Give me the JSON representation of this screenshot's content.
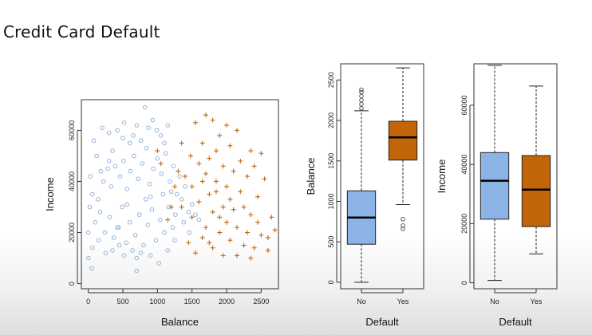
{
  "title": "Credit Card Default",
  "colors": {
    "no": "#86acd8",
    "yes": "#c06a0e",
    "no_box": "#8bb3e6",
    "yes_box": "#c26408"
  },
  "chart_data": [
    {
      "type": "scatter",
      "xlabel": "Balance",
      "ylabel": "Income",
      "xlim": [
        -100,
        2750
      ],
      "ylim": [
        -2000,
        72000
      ],
      "xticks": [
        0,
        500,
        1000,
        1500,
        2000,
        2500
      ],
      "yticks": [
        0,
        20000,
        40000,
        60000
      ],
      "grid": false,
      "legend": "none",
      "series": [
        {
          "marker": "circle",
          "color": "#86acd8",
          "points": [
            [
              30,
              42000
            ],
            [
              80,
              56000
            ],
            [
              120,
              50000
            ],
            [
              200,
              61000
            ],
            [
              300,
              59000
            ],
            [
              350,
              52000
            ],
            [
              420,
              60000
            ],
            [
              500,
              57000
            ],
            [
              520,
              63000
            ],
            [
              600,
              55000
            ],
            [
              650,
              58000
            ],
            [
              700,
              62000
            ],
            [
              760,
              56000
            ],
            [
              820,
              69000
            ],
            [
              870,
              61000
            ],
            [
              930,
              64000
            ],
            [
              990,
              60000
            ],
            [
              1050,
              58000
            ],
            [
              1100,
              55000
            ],
            [
              1150,
              62000
            ],
            [
              60,
              35000
            ],
            [
              140,
              33000
            ],
            [
              220,
              40000
            ],
            [
              280,
              45000
            ],
            [
              330,
              38000
            ],
            [
              390,
              46000
            ],
            [
              460,
              42000
            ],
            [
              510,
              48000
            ],
            [
              560,
              37000
            ],
            [
              610,
              44000
            ],
            [
              660,
              50000
            ],
            [
              720,
              41000
            ],
            [
              780,
              47000
            ],
            [
              840,
              53000
            ],
            [
              890,
              39000
            ],
            [
              940,
              45000
            ],
            [
              1000,
              49000
            ],
            [
              1060,
              43000
            ],
            [
              1120,
              51000
            ],
            [
              1180,
              40000
            ],
            [
              1230,
              46000
            ],
            [
              1280,
              35000
            ],
            [
              1320,
              42000
            ],
            [
              20,
              30000
            ],
            [
              100,
              24000
            ],
            [
              170,
              28000
            ],
            [
              240,
              20000
            ],
            [
              310,
              26000
            ],
            [
              370,
              18000
            ],
            [
              440,
              22000
            ],
            [
              490,
              30000
            ],
            [
              550,
              16000
            ],
            [
              600,
              24000
            ],
            [
              680,
              19000
            ],
            [
              740,
              27000
            ],
            [
              800,
              15000
            ],
            [
              860,
              23000
            ],
            [
              920,
              29000
            ],
            [
              980,
              17000
            ],
            [
              1040,
              25000
            ],
            [
              1100,
              20000
            ],
            [
              1160,
              30000
            ],
            [
              1220,
              22000
            ],
            [
              1260,
              27000
            ],
            [
              1350,
              33000
            ],
            [
              1400,
              38000
            ],
            [
              1450,
              28000
            ],
            [
              0,
              20000
            ],
            [
              60,
              14000
            ],
            [
              150,
              17000
            ],
            [
              250,
              12000
            ],
            [
              350,
              13000
            ],
            [
              450,
              15000
            ],
            [
              520,
              11000
            ],
            [
              640,
              13000
            ],
            [
              700,
              10000
            ],
            [
              760,
              12000
            ],
            [
              900,
              11000
            ],
            [
              1020,
              8000
            ],
            [
              1150,
              13000
            ],
            [
              1250,
              17000
            ],
            [
              0,
              10000
            ],
            [
              50,
              6000
            ],
            [
              420,
              22000
            ],
            [
              560,
              31000
            ],
            [
              830,
              33000
            ],
            [
              1080,
              35000
            ],
            [
              1200,
              36000
            ],
            [
              1380,
              24000
            ],
            [
              1460,
              20000
            ],
            [
              1500,
              31000
            ],
            [
              1550,
              27000
            ],
            [
              1600,
              25000
            ],
            [
              700,
              5000
            ],
            [
              900,
              34000
            ],
            [
              300,
              48000
            ],
            [
              180,
              44000
            ]
          ]
        },
        {
          "marker": "plus",
          "color": "#c06a0e",
          "points": [
            [
              1700,
              66000
            ],
            [
              1800,
              64000
            ],
            [
              1550,
              63000
            ],
            [
              2000,
              62000
            ],
            [
              1900,
              58000
            ],
            [
              2150,
              60000
            ],
            [
              1650,
              55000
            ],
            [
              2350,
              52000
            ],
            [
              2500,
              51000
            ],
            [
              1850,
              52000
            ],
            [
              2050,
              54000
            ],
            [
              1480,
              50000
            ],
            [
              1750,
              49000
            ],
            [
              2200,
              48000
            ],
            [
              2400,
              46000
            ],
            [
              1600,
              47000
            ],
            [
              1950,
              46000
            ],
            [
              2100,
              44000
            ],
            [
              1700,
              43000
            ],
            [
              2300,
              42000
            ],
            [
              2550,
              41000
            ],
            [
              1400,
              42000
            ],
            [
              1850,
              40000
            ],
            [
              2000,
              38000
            ],
            [
              1500,
              38000
            ],
            [
              2200,
              36000
            ],
            [
              1750,
              35000
            ],
            [
              2450,
              34000
            ],
            [
              1600,
              32000
            ],
            [
              1950,
              30000
            ],
            [
              2100,
              29000
            ],
            [
              1350,
              30000
            ],
            [
              1800,
              28000
            ],
            [
              2350,
              27000
            ],
            [
              2650,
              26000
            ],
            [
              1500,
              26000
            ],
            [
              2000,
              24000
            ],
            [
              2150,
              22000
            ],
            [
              1700,
              22000
            ],
            [
              1900,
              20000
            ],
            [
              2300,
              20000
            ],
            [
              2500,
              19000
            ],
            [
              1650,
              18000
            ],
            [
              1450,
              16000
            ],
            [
              2050,
              17000
            ],
            [
              2250,
              15000
            ],
            [
              1800,
              14000
            ],
            [
              2400,
              14000
            ],
            [
              2600,
              13000
            ],
            [
              1550,
              12000
            ],
            [
              1950,
              11000
            ],
            [
              2150,
              11000
            ],
            [
              2350,
              10000
            ],
            [
              2700,
              21000
            ],
            [
              1300,
              44000
            ],
            [
              1250,
              38000
            ],
            [
              1350,
              55000
            ],
            [
              1050,
              47000
            ],
            [
              1200,
              30000
            ],
            [
              1000,
              52000
            ],
            [
              1150,
              25000
            ],
            [
              1850,
              36000
            ],
            [
              2050,
              33000
            ],
            [
              1650,
              40000
            ],
            [
              2250,
              30000
            ],
            [
              1900,
              26000
            ],
            [
              1750,
              16000
            ],
            [
              2450,
              24000
            ],
            [
              2600,
              18000
            ]
          ]
        }
      ]
    },
    {
      "type": "box",
      "xlabel": "Default",
      "ylabel": "Balance",
      "categories": [
        "No",
        "Yes"
      ],
      "ylim": [
        -80,
        2700
      ],
      "yticks": [
        0,
        500,
        1000,
        1500,
        2000,
        2500
      ],
      "boxes": [
        {
          "category": "No",
          "min": 0,
          "q1": 470,
          "median": 800,
          "q3": 1130,
          "max": 2120,
          "outliers": [
            2150,
            2200,
            2250,
            2300,
            2350,
            2380
          ]
        },
        {
          "category": "Yes",
          "min": 960,
          "q1": 1510,
          "median": 1790,
          "q3": 1990,
          "max": 2650,
          "outliers": [
            660,
            700,
            780
          ]
        }
      ]
    },
    {
      "type": "box",
      "xlabel": "Default",
      "ylabel": "Income",
      "categories": [
        "No",
        "Yes"
      ],
      "ylim": [
        -2000,
        74000
      ],
      "yticks": [
        0,
        20000,
        40000,
        60000
      ],
      "boxes": [
        {
          "category": "No",
          "min": 800,
          "q1": 21500,
          "median": 34500,
          "q3": 44000,
          "max": 73500,
          "outliers": []
        },
        {
          "category": "Yes",
          "min": 9800,
          "q1": 19000,
          "median": 31500,
          "q3": 43000,
          "max": 66500,
          "outliers": []
        }
      ]
    }
  ]
}
